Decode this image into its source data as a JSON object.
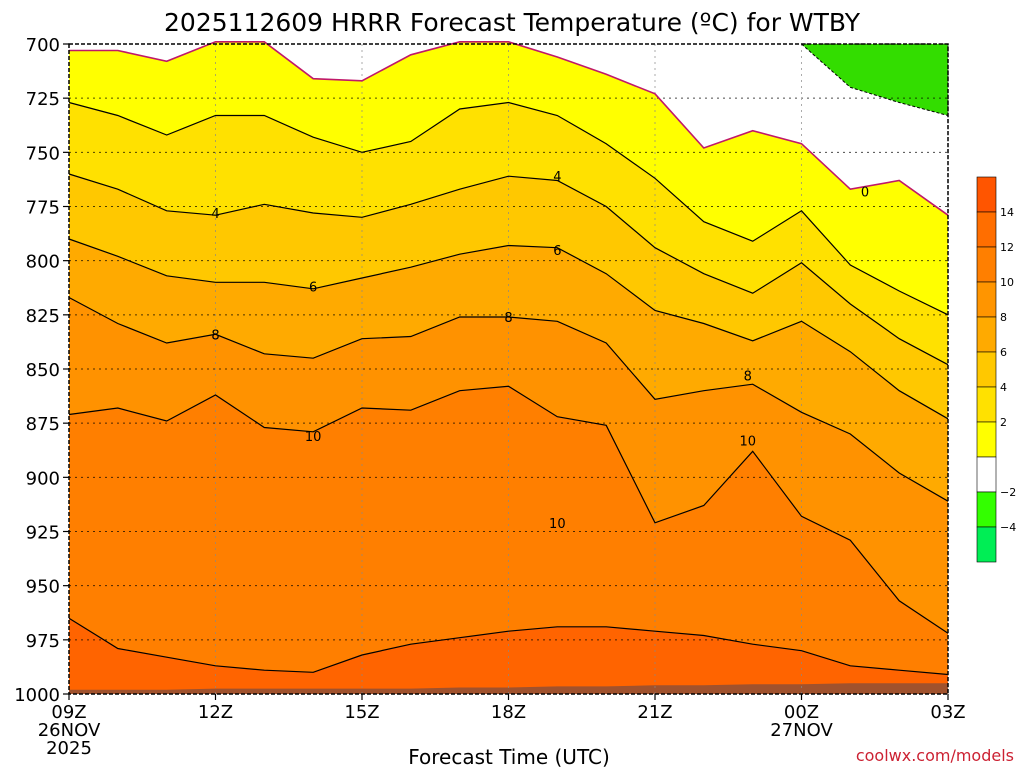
{
  "chart_data": {
    "type": "contour",
    "title": "2025112609 HRRR Forecast Temperature (ºC) for WTBY",
    "xlabel": "Forecast Time (UTC)",
    "credit": "coolwx.com/models",
    "credit_color": "#cc2233",
    "y_ticks": [
      "700",
      "725",
      "750",
      "775",
      "800",
      "825",
      "850",
      "875",
      "900",
      "925",
      "950",
      "975",
      "1000"
    ],
    "y_range_hpa": [
      700,
      1000
    ],
    "x_range_hours": [
      9,
      27
    ],
    "x_ticks": [
      {
        "hour": 9,
        "line1": "09Z",
        "line2": "26NOV",
        "line3": "2025"
      },
      {
        "hour": 12,
        "line1": "12Z",
        "line2": "",
        "line3": ""
      },
      {
        "hour": 15,
        "line1": "15Z",
        "line2": "",
        "line3": ""
      },
      {
        "hour": 18,
        "line1": "18Z",
        "line2": "",
        "line3": ""
      },
      {
        "hour": 21,
        "line1": "21Z",
        "line2": "",
        "line3": ""
      },
      {
        "hour": 24,
        "line1": "00Z",
        "line2": "27NOV",
        "line3": ""
      },
      {
        "hour": 27,
        "line1": "03Z",
        "line2": "",
        "line3": ""
      }
    ],
    "hours": [
      9,
      10,
      11,
      12,
      13,
      14,
      15,
      16,
      17,
      18,
      19,
      20,
      21,
      22,
      23,
      24,
      25,
      26,
      27
    ],
    "surface_hpa": [
      998,
      998,
      998,
      997.5,
      997.5,
      997.5,
      997.5,
      997.5,
      997,
      997,
      996.5,
      996.5,
      996,
      996,
      995.5,
      995.5,
      995,
      995,
      995
    ],
    "isotherms": [
      {
        "level": 0,
        "color": "#c0186a",
        "p": [
          703,
          703,
          708,
          699,
          699,
          716,
          717,
          705,
          699,
          699,
          706,
          714,
          723,
          748,
          740,
          746,
          767,
          763,
          779
        ]
      },
      {
        "level": 2,
        "color": "#000000",
        "p": [
          727,
          733,
          742,
          733,
          733,
          743,
          750,
          745,
          730,
          727,
          733,
          746,
          762,
          782,
          791,
          777,
          802,
          814,
          825
        ]
      },
      {
        "level": 4,
        "color": "#000000",
        "p": [
          760,
          767,
          777,
          779,
          774,
          778,
          780,
          774,
          767,
          761,
          763,
          775,
          794,
          806,
          815,
          801,
          820,
          836,
          848
        ]
      },
      {
        "level": 6,
        "color": "#000000",
        "p": [
          790,
          798,
          807,
          810,
          810,
          813,
          808,
          803,
          797,
          793,
          794,
          806,
          823,
          829,
          837,
          828,
          842,
          860,
          873
        ]
      },
      {
        "level": 8,
        "color": "#000000",
        "p": [
          817,
          829,
          838,
          834,
          843,
          845,
          836,
          835,
          826,
          826,
          828,
          838,
          864,
          860,
          857,
          870,
          880,
          898,
          911
        ]
      },
      {
        "level": 10,
        "color": "#000000",
        "p": [
          871,
          868,
          874,
          862,
          877,
          879,
          868,
          869,
          860,
          858,
          872,
          876,
          921,
          913,
          888,
          918,
          929,
          957,
          972
        ]
      },
      {
        "level": 12,
        "color": "#000000",
        "p": [
          965,
          979,
          983,
          987,
          989,
          990,
          982,
          977,
          974,
          971,
          969,
          969,
          971,
          973,
          977,
          980,
          987,
          989,
          991
        ]
      }
    ],
    "colorbar": {
      "ticks": [
        "14",
        "12",
        "10",
        "8",
        "6",
        "4",
        "2",
        "−2",
        "−4"
      ],
      "bands": [
        "#ff5500",
        "#ff6e00",
        "#ff7f00",
        "#ff9500",
        "#ffaa00",
        "#ffc800",
        "#ffe100",
        "#ffff00",
        "#ffffff",
        "#33ff00",
        "#00ee55"
      ]
    },
    "colors": {
      "below_0": "#ffffff",
      "band_0_2": "#ffff00",
      "band_2_4": "#ffe100",
      "band_4_6": "#ffc800",
      "band_6_8": "#ffaa00",
      "band_8_10": "#ff9200",
      "band_10_12": "#ff7f00",
      "above_12": "#ff6400",
      "neg2_band": "#33dd00",
      "ground": "#a0522d"
    },
    "contour_labels": [
      {
        "text": "0",
        "hour": 25.3,
        "hpa": 768
      },
      {
        "text": "4",
        "hour": 12.0,
        "hpa": 778
      },
      {
        "text": "4",
        "hour": 19.0,
        "hpa": 761
      },
      {
        "text": "6",
        "hour": 14.0,
        "hpa": 812
      },
      {
        "text": "6",
        "hour": 19.0,
        "hpa": 795
      },
      {
        "text": "8",
        "hour": 12.0,
        "hpa": 834
      },
      {
        "text": "8",
        "hour": 18.0,
        "hpa": 826
      },
      {
        "text": "8",
        "hour": 22.9,
        "hpa": 853
      },
      {
        "text": "10",
        "hour": 14.0,
        "hpa": 881
      },
      {
        "text": "10",
        "hour": 19.0,
        "hpa": 921
      },
      {
        "text": "10",
        "hour": 22.9,
        "hpa": 883
      }
    ]
  }
}
